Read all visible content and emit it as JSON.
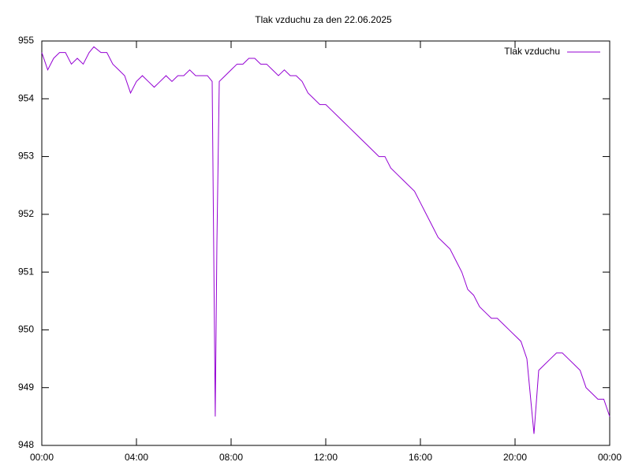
{
  "chart_data": {
    "type": "line",
    "title": "Tlak vzduchu za den 22.06.2025",
    "x": [
      0,
      0.25,
      0.5,
      0.75,
      1,
      1.25,
      1.5,
      1.75,
      2,
      2.2,
      2.5,
      2.75,
      3,
      3.25,
      3.5,
      3.75,
      4,
      4.25,
      4.5,
      4.75,
      5,
      5.25,
      5.5,
      5.75,
      6,
      6.25,
      6.5,
      6.75,
      7,
      7.2,
      7.33,
      7.4,
      7.5,
      7.75,
      8,
      8.25,
      8.5,
      8.75,
      9,
      9.25,
      9.5,
      9.75,
      10,
      10.25,
      10.5,
      10.75,
      11,
      11.25,
      11.5,
      11.75,
      12,
      12.25,
      12.5,
      12.75,
      13,
      13.25,
      13.5,
      13.75,
      14,
      14.25,
      14.5,
      14.75,
      15,
      15.25,
      15.5,
      15.75,
      16,
      16.25,
      16.5,
      16.75,
      17,
      17.25,
      17.5,
      17.75,
      18,
      18.25,
      18.5,
      18.75,
      19,
      19.25,
      19.5,
      19.75,
      20,
      20.25,
      20.5,
      20.8,
      21,
      21.25,
      21.5,
      21.75,
      22,
      22.25,
      22.5,
      22.75,
      23,
      23.25,
      23.5,
      23.75,
      24
    ],
    "series": [
      {
        "name": "Tlak vzduchu",
        "color": "#9400d3",
        "values": [
          954.8,
          954.5,
          954.7,
          954.8,
          954.8,
          954.6,
          954.7,
          954.6,
          954.8,
          954.9,
          954.8,
          954.8,
          954.6,
          954.5,
          954.4,
          954.1,
          954.3,
          954.4,
          954.3,
          954.2,
          954.3,
          954.4,
          954.3,
          954.4,
          954.4,
          954.5,
          954.4,
          954.4,
          954.4,
          954.3,
          948.5,
          951.5,
          954.3,
          954.4,
          954.5,
          954.6,
          954.6,
          954.7,
          954.7,
          954.6,
          954.6,
          954.5,
          954.4,
          954.5,
          954.4,
          954.4,
          954.3,
          954.1,
          954.0,
          953.9,
          953.9,
          953.8,
          953.7,
          953.6,
          953.5,
          953.4,
          953.3,
          953.2,
          953.1,
          953.0,
          953.0,
          952.8,
          952.7,
          952.6,
          952.5,
          952.4,
          952.2,
          952.0,
          951.8,
          951.6,
          951.5,
          951.4,
          951.2,
          951.0,
          950.7,
          950.6,
          950.4,
          950.3,
          950.2,
          950.2,
          950.1,
          950.0,
          949.9,
          949.8,
          949.5,
          948.2,
          949.3,
          949.4,
          949.5,
          949.6,
          949.6,
          949.5,
          949.4,
          949.3,
          949.0,
          948.9,
          948.8,
          948.8,
          948.5
        ]
      }
    ],
    "xlim": [
      0,
      24
    ],
    "xticks": [
      {
        "value": 0,
        "label": "00:00"
      },
      {
        "value": 4,
        "label": "04:00"
      },
      {
        "value": 8,
        "label": "08:00"
      },
      {
        "value": 12,
        "label": "12:00"
      },
      {
        "value": 16,
        "label": "16:00"
      },
      {
        "value": 20,
        "label": "20:00"
      },
      {
        "value": 24,
        "label": "00:00"
      }
    ],
    "ylim": [
      948,
      955
    ],
    "yticks": [
      948,
      949,
      950,
      951,
      952,
      953,
      954,
      955
    ],
    "grid": false,
    "legend": "top-right"
  }
}
